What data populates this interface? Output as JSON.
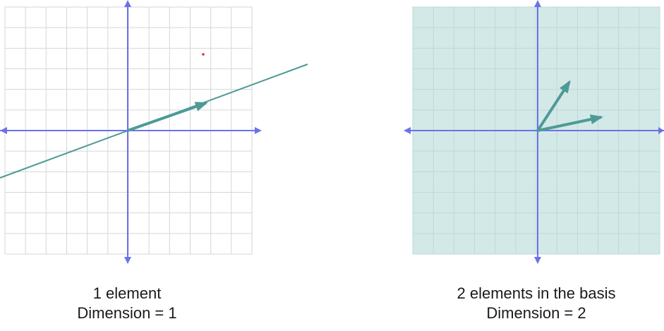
{
  "colors": {
    "axis": "#6b72e8",
    "vector": "#4e9a96",
    "grid_left": "#d6d6d6",
    "grid_right": "#bcd9d6",
    "span_fill": "#d3e9e7"
  },
  "panels": [
    {
      "caption_line1": "1 element",
      "caption_line2": "Dimension = 1"
    },
    {
      "caption_line1": "2 elements in the basis",
      "caption_line2": "Dimension = 2"
    }
  ]
}
